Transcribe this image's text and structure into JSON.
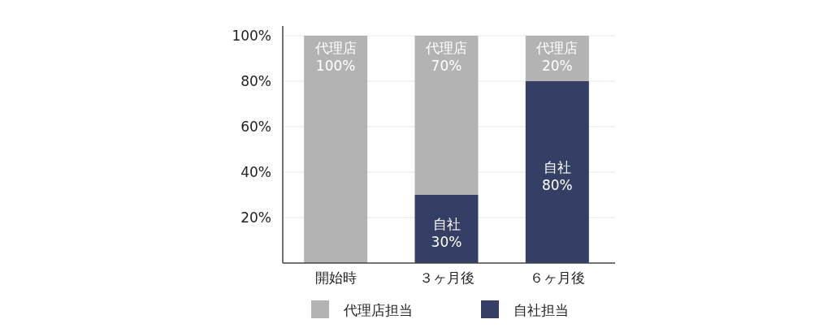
{
  "chart_data": {
    "type": "bar",
    "stacked": true,
    "categories": [
      "開始時",
      "３ヶ月後",
      "６ヶ月後"
    ],
    "series": [
      {
        "name": "自社担当",
        "color": "#353f66",
        "values": [
          0,
          30,
          80
        ],
        "value_labels": [
          null,
          "自社\n30%",
          "自社\n80%"
        ]
      },
      {
        "name": "代理店担当",
        "color": "#b3b3b3",
        "values": [
          100,
          70,
          20
        ],
        "value_labels": [
          "代理店\n100%",
          "代理店\n70%",
          "代理店\n20%"
        ]
      }
    ],
    "ylim": [
      0,
      100
    ],
    "yticks": [
      {
        "value": 20,
        "label": "20%"
      },
      {
        "value": 40,
        "label": "40%"
      },
      {
        "value": 60,
        "label": "60%"
      },
      {
        "value": 80,
        "label": "80%"
      },
      {
        "value": 100,
        "label": "100%"
      }
    ],
    "grid": "y",
    "legend": "bottom"
  }
}
